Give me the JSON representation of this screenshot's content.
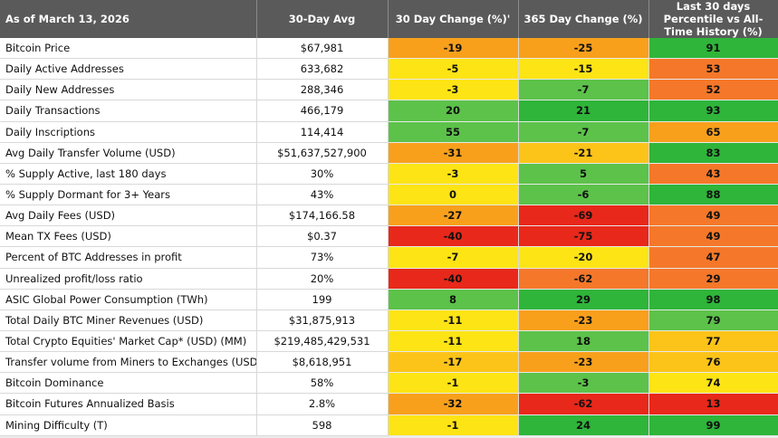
{
  "table": {
    "header": [
      "As of March 13, 2026",
      "30-Day Avg",
      "30 Day Change (%)'",
      "365 Day Change (%)",
      "Last 30 days Percentile vs All-Time History (%)"
    ],
    "rows": [
      [
        "Bitcoin Price",
        "$67,981",
        "-19",
        "-25",
        "91"
      ],
      [
        "Daily Active Addresses",
        "633,682",
        "-5",
        "-15",
        "53"
      ],
      [
        "Daily New Addresses",
        "288,346",
        "-3",
        "-7",
        "52"
      ],
      [
        "Daily Transactions",
        "466,179",
        "20",
        "21",
        "93"
      ],
      [
        "Daily Inscriptions",
        "114,414",
        "55",
        "-7",
        "65"
      ],
      [
        "Avg Daily Transfer Volume (USD)",
        "$51,637,527,900",
        "-31",
        "-21",
        "83"
      ],
      [
        "% Supply Active, last 180 days",
        "30%",
        "-3",
        "5",
        "43"
      ],
      [
        "% Supply Dormant for 3+ Years",
        "43%",
        "0",
        "-6",
        "88"
      ],
      [
        "Avg Daily Fees (USD)",
        "$174,166.58",
        "-27",
        "-69",
        "49"
      ],
      [
        "Mean TX Fees (USD)",
        "$0.37",
        "-40",
        "-75",
        "49"
      ],
      [
        "Percent of BTC Addresses in profit",
        "73%",
        "-7",
        "-20",
        "47"
      ],
      [
        "Unrealized profit/loss ratio",
        "20%",
        "-40",
        "-62",
        "29"
      ],
      [
        "ASIC Global Power Consumption (TWh)",
        "199",
        "8",
        "29",
        "98"
      ],
      [
        "Total Daily BTC Miner Revenues (USD)",
        "$31,875,913",
        "-11",
        "-23",
        "79"
      ],
      [
        "Total Crypto Equities' Market Cap* (USD) (MM)",
        "$219,485,429,531",
        "-11",
        "18",
        "77"
      ],
      [
        "Transfer volume from Miners to Exchanges (USD)",
        "$8,618,951",
        "-17",
        "-23",
        "76"
      ],
      [
        "Bitcoin Dominance",
        "58%",
        "-1",
        "-3",
        "74"
      ],
      [
        "Bitcoin Futures Annualized Basis",
        "2.8%",
        "-32",
        "-62",
        "13"
      ],
      [
        "Mining Difficulty (T)",
        "598",
        "-1",
        "24",
        "99"
      ]
    ],
    "cell_colors": [
      [
        "#f8a01c",
        "#f8a01c",
        "#2fb53a"
      ],
      [
        "#fde415",
        "#fde415",
        "#f5782a"
      ],
      [
        "#fde415",
        "#5cc24a",
        "#f5782a"
      ],
      [
        "#5cc24a",
        "#2fb53a",
        "#2fb53a"
      ],
      [
        "#5cc24a",
        "#5cc24a",
        "#f8a01c"
      ],
      [
        "#f8a01c",
        "#fcc419",
        "#2fb53a"
      ],
      [
        "#fde415",
        "#5cc24a",
        "#f5782a"
      ],
      [
        "#fde415",
        "#5cc24a",
        "#2fb53a"
      ],
      [
        "#f8a01c",
        "#e8281a",
        "#f5782a"
      ],
      [
        "#e8281a",
        "#e8281a",
        "#f5782a"
      ],
      [
        "#fde415",
        "#fde415",
        "#f5782a"
      ],
      [
        "#e8281a",
        "#f5782a",
        "#f5782a"
      ],
      [
        "#5cc24a",
        "#2fb53a",
        "#2fb53a"
      ],
      [
        "#fde415",
        "#f8a01c",
        "#5cc24a"
      ],
      [
        "#fde415",
        "#5cc24a",
        "#fcc419"
      ],
      [
        "#fcc419",
        "#f8a01c",
        "#fcc419"
      ],
      [
        "#fde415",
        "#5cc24a",
        "#fde415"
      ],
      [
        "#f8a01c",
        "#e8281a",
        "#e8281a"
      ],
      [
        "#fde415",
        "#2fb53a",
        "#2fb53a"
      ]
    ]
  }
}
